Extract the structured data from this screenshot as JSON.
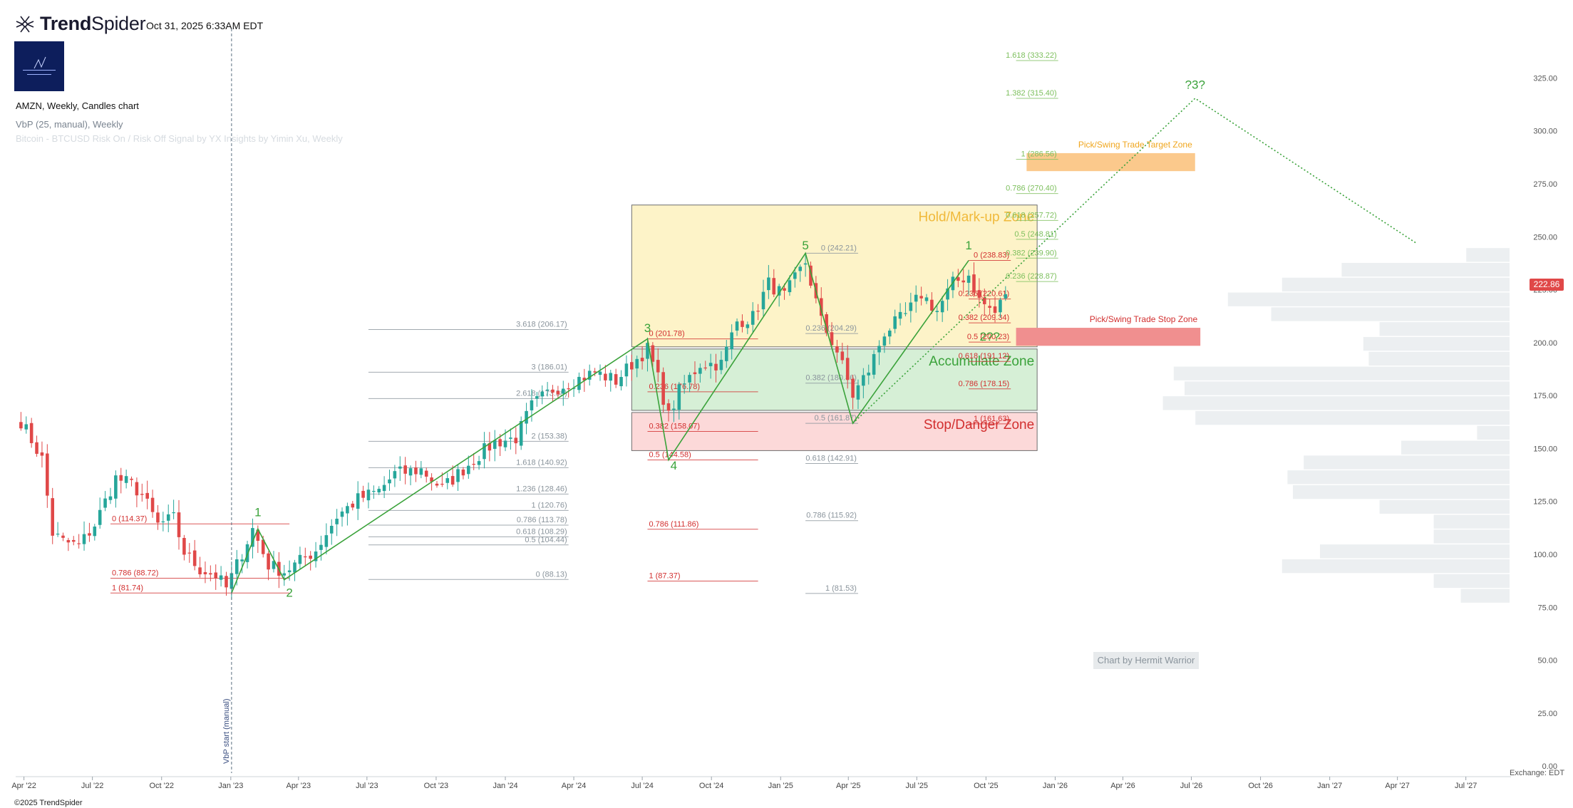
{
  "header": {
    "brand_bold": "Trend",
    "brand_light": "Spider",
    "timestamp": "Oct 31, 2025 6:33AM EDT",
    "chart_title": "AMZN, Weekly, Candles chart",
    "indicator_1": "VbP (25, manual), Weekly",
    "indicator_2": "Bitcoin - BTCUSD Risk On / Risk Off Signal by YX Insights by Yimin Xu, Weekly"
  },
  "footer": {
    "copyright": "©2025 TrendSpider",
    "exchange": "Exchange: EDT",
    "watermark": "Chart by Hermit Warrior"
  },
  "colors": {
    "up": "#26a69a",
    "down": "#e04848",
    "wave": "#3aa23a",
    "fib_gray": "#8a949c",
    "fib_red": "#d22f2f",
    "fib_green": "#7cbf5c",
    "zone_hold": "#fdf3c8",
    "zone_accumulate": "#d6efd6",
    "zone_stop": "#fcd9d9",
    "target_zone": "#fbc98c",
    "stop_zone_box": "#f08f8f",
    "vbp": "#eceff1"
  },
  "chart_data": {
    "type": "candlestick",
    "symbol": "AMZN",
    "interval": "Weekly",
    "x_range": [
      "2022-03-21",
      "2027-08-30"
    ],
    "y_range": [
      -5,
      345
    ],
    "x_ticks": [
      {
        "date": "2022-04-01",
        "label": "Apr '22"
      },
      {
        "date": "2022-07-01",
        "label": "Jul '22"
      },
      {
        "date": "2022-10-01",
        "label": "Oct '22"
      },
      {
        "date": "2023-01-01",
        "label": "Jan '23"
      },
      {
        "date": "2023-04-01",
        "label": "Apr '23"
      },
      {
        "date": "2023-07-01",
        "label": "Jul '23"
      },
      {
        "date": "2023-10-01",
        "label": "Oct '23"
      },
      {
        "date": "2024-01-01",
        "label": "Jan '24"
      },
      {
        "date": "2024-04-01",
        "label": "Apr '24"
      },
      {
        "date": "2024-07-01",
        "label": "Jul '24"
      },
      {
        "date": "2024-10-01",
        "label": "Oct '24"
      },
      {
        "date": "2025-01-01",
        "label": "Jan '25"
      },
      {
        "date": "2025-04-01",
        "label": "Apr '25"
      },
      {
        "date": "2025-07-01",
        "label": "Jul '25"
      },
      {
        "date": "2025-10-01",
        "label": "Oct '25"
      },
      {
        "date": "2026-01-01",
        "label": "Jan '26"
      },
      {
        "date": "2026-04-01",
        "label": "Apr '26"
      },
      {
        "date": "2026-07-01",
        "label": "Jul '26"
      },
      {
        "date": "2026-10-01",
        "label": "Oct '26"
      },
      {
        "date": "2027-01-01",
        "label": "Jan '27"
      },
      {
        "date": "2027-04-01",
        "label": "Apr '27"
      },
      {
        "date": "2027-07-01",
        "label": "Jul '27"
      }
    ],
    "y_ticks": [
      {
        "v": 325,
        "label": "325.00"
      },
      {
        "v": 300,
        "label": "300.00"
      },
      {
        "v": 275,
        "label": "275.00"
      },
      {
        "v": 250,
        "label": "250.00"
      },
      {
        "v": 225,
        "label": "225.00"
      },
      {
        "v": 200,
        "label": "200.00"
      },
      {
        "v": 175,
        "label": "175.00"
      },
      {
        "v": 150,
        "label": "150.00"
      },
      {
        "v": 125,
        "label": "125.00"
      },
      {
        "v": 100,
        "label": "100.00"
      },
      {
        "v": 75,
        "label": "75.00"
      },
      {
        "v": 50,
        "label": "50.00"
      },
      {
        "v": 25,
        "label": "25.00"
      },
      {
        "v": 0,
        "label": "0.00"
      }
    ],
    "last_price": "222.86",
    "close_path": [
      [
        "2022-03-28",
        163
      ],
      [
        "2022-04-25",
        145
      ],
      [
        "2022-05-09",
        110
      ],
      [
        "2022-05-23",
        106
      ],
      [
        "2022-06-13",
        104
      ],
      [
        "2022-07-04",
        114
      ],
      [
        "2022-08-01",
        136
      ],
      [
        "2022-08-22",
        133
      ],
      [
        "2022-09-05",
        128
      ],
      [
        "2022-09-26",
        114
      ],
      [
        "2022-10-17",
        117
      ],
      [
        "2022-10-31",
        101
      ],
      [
        "2022-11-21",
        93
      ],
      [
        "2022-12-12",
        90
      ],
      [
        "2022-12-26",
        84
      ],
      [
        "2023-01-09",
        95
      ],
      [
        "2023-01-30",
        112
      ],
      [
        "2023-02-20",
        95
      ],
      [
        "2023-03-13",
        92
      ],
      [
        "2023-03-27",
        95
      ],
      [
        "2023-04-24",
        102
      ],
      [
        "2023-05-22",
        118
      ],
      [
        "2023-06-19",
        126
      ],
      [
        "2023-07-17",
        130
      ],
      [
        "2023-08-07",
        138
      ],
      [
        "2023-09-11",
        140
      ],
      [
        "2023-10-09",
        131
      ],
      [
        "2023-10-30",
        138
      ],
      [
        "2023-11-27",
        147
      ],
      [
        "2023-12-18",
        153
      ],
      [
        "2024-01-15",
        155
      ],
      [
        "2024-02-05",
        170
      ],
      [
        "2024-03-04",
        178
      ],
      [
        "2024-04-01",
        182
      ],
      [
        "2024-04-29",
        186
      ],
      [
        "2024-05-27",
        182
      ],
      [
        "2024-06-17",
        190
      ],
      [
        "2024-07-08",
        197
      ],
      [
        "2024-07-22",
        183
      ],
      [
        "2024-08-05",
        165
      ],
      [
        "2024-08-19",
        177
      ],
      [
        "2024-09-16",
        190
      ],
      [
        "2024-10-14",
        190
      ],
      [
        "2024-11-04",
        210
      ],
      [
        "2024-11-25",
        212
      ],
      [
        "2024-12-16",
        228
      ],
      [
        "2025-01-06",
        222
      ],
      [
        "2025-02-03",
        238
      ],
      [
        "2025-02-24",
        210
      ],
      [
        "2025-03-17",
        196
      ],
      [
        "2025-04-07",
        175
      ],
      [
        "2025-04-28",
        187
      ],
      [
        "2025-05-19",
        205
      ],
      [
        "2025-06-16",
        213
      ],
      [
        "2025-07-07",
        223
      ],
      [
        "2025-07-28",
        215
      ],
      [
        "2025-08-18",
        228
      ],
      [
        "2025-09-08",
        232
      ],
      [
        "2025-09-22",
        220
      ],
      [
        "2025-10-13",
        214
      ],
      [
        "2025-10-27",
        222.86
      ]
    ],
    "drawings": {
      "vbp_start_label": "VbP start (manual)",
      "vbp_start_date": "2023-01-02",
      "wave_path": [
        [
          "2023-01-02",
          81.7
        ],
        [
          "2023-02-06",
          112
        ],
        [
          "2023-03-13",
          88
        ],
        [
          "2024-07-08",
          201.78
        ],
        [
          "2024-08-05",
          144.6
        ],
        [
          "2025-02-03",
          242.2
        ],
        [
          "2025-04-07",
          161.9
        ],
        [
          "2025-09-08",
          238.8
        ]
      ],
      "projection_path": [
        [
          "2025-04-07",
          161.9
        ],
        [
          "2026-07-06",
          315.4
        ],
        [
          "2027-04-26",
          247
        ]
      ],
      "wave_labels": [
        {
          "text": "1",
          "date": "2023-02-06",
          "v": 118
        },
        {
          "text": "2",
          "date": "2023-03-20",
          "v": 80
        },
        {
          "text": "3",
          "date": "2024-07-08",
          "v": 205
        },
        {
          "text": "4",
          "date": "2024-08-12",
          "v": 140
        },
        {
          "text": "5",
          "date": "2025-02-03",
          "v": 244
        },
        {
          "text": "1",
          "date": "2025-09-08",
          "v": 244
        },
        {
          "text": "2??",
          "date": "2025-10-06",
          "v": 201
        },
        {
          "text": "?3?",
          "date": "2026-07-06",
          "v": 320
        }
      ],
      "zones": [
        {
          "label": "Hold/Mark-up Zone",
          "x1": "2024-06-17",
          "x2": "2025-12-08",
          "y1": 198,
          "y2": 265,
          "color": "#fdf3c8",
          "text_color": "#f0b93a",
          "border": "#6e6e6e"
        },
        {
          "label": "Accumulate Zone",
          "x1": "2024-06-17",
          "x2": "2025-12-08",
          "y1": 168,
          "y2": 197,
          "color": "#d6efd6",
          "text_color": "#3aa23a",
          "border": "#6e6e6e"
        },
        {
          "label": "Stop/Danger Zone",
          "x1": "2024-06-17",
          "x2": "2025-12-08",
          "y1": 149,
          "y2": 167,
          "color": "#fcd9d9",
          "text_color": "#d22f2f",
          "border": "#6e6e6e"
        }
      ],
      "small_zones": [
        {
          "label": "Pick/Swing Trade Target Zone",
          "x1": "2025-11-24",
          "x2": "2026-07-06",
          "y1": 281,
          "y2": 289.5,
          "color": "#fbc98c",
          "text_color": "#f0a61e"
        },
        {
          "label": "Pick/Swing Trade Stop Zone",
          "x1": "2025-11-10",
          "x2": "2026-07-13",
          "y1": 198.5,
          "y2": 207,
          "color": "#f08f8f",
          "text_color": "#d22f2f"
        }
      ],
      "fib_sets": [
        {
          "color": "#8a949c",
          "x1": "2023-07-03",
          "x2": "2024-03-25",
          "label_date": "2024-03-25",
          "levels": [
            {
              "label": "3.618 (206.17)",
              "v": 206.17
            },
            {
              "label": "3 (186.01)",
              "v": 186.01
            },
            {
              "label": "2.618 (173.58)",
              "v": 173.58
            },
            {
              "label": "2 (153.38)",
              "v": 153.38
            },
            {
              "label": "1.618 (140.92)",
              "v": 140.92
            },
            {
              "label": "1.236 (128.46)",
              "v": 128.46
            },
            {
              "label": "1 (120.76)",
              "v": 120.76
            },
            {
              "label": "0.786 (113.78)",
              "v": 113.78
            },
            {
              "label": "0.618 (108.29)",
              "v": 108.29
            },
            {
              "label": "0.5 (104.44)",
              "v": 104.44
            },
            {
              "label": "0 (88.13)",
              "v": 88.13
            }
          ]
        },
        {
          "color": "#d22f2f",
          "x1": "2022-07-25",
          "x2": "2023-03-20",
          "label_date": "2022-07-25",
          "levels": [
            {
              "label": "0 (114.37)",
              "v": 114.37
            },
            {
              "label": "0.786 (88.72)",
              "v": 88.72
            },
            {
              "label": "1 (81.74)",
              "v": 81.74
            }
          ]
        },
        {
          "color": "#d22f2f",
          "x1": "2024-07-08",
          "x2": "2024-12-02",
          "label_date": "2024-07-08",
          "levels": [
            {
              "label": "0 (201.78)",
              "v": 201.78
            },
            {
              "label": "0.236 (176.78)",
              "v": 176.78
            },
            {
              "label": "0.382 (158.07)",
              "v": 158.07
            },
            {
              "label": "0.5 (144.58)",
              "v": 144.58
            },
            {
              "label": "0.786 (111.86)",
              "v": 111.86
            },
            {
              "label": "1 (87.37)",
              "v": 87.37
            }
          ]
        },
        {
          "color": "#8a949c",
          "x1": "2025-02-03",
          "x2": "2025-04-14",
          "label_date": "2025-04-14",
          "levels": [
            {
              "label": "0 (242.21)",
              "v": 242.21
            },
            {
              "label": "0.236 (204.29)",
              "v": 204.29
            },
            {
              "label": "0.382 (180.86)",
              "v": 180.86
            },
            {
              "label": "0.5 (161.87)",
              "v": 161.87
            },
            {
              "label": "0.618 (142.91)",
              "v": 142.91
            },
            {
              "label": "0.786 (115.92)",
              "v": 115.92
            },
            {
              "label": "1 (81.53)",
              "v": 81.53
            }
          ]
        },
        {
          "color": "#d22f2f",
          "x1": "2025-09-08",
          "x2": "2025-11-03",
          "label_date": "2025-11-03",
          "levels": [
            {
              "label": "0 (238.83)",
              "v": 238.83
            },
            {
              "label": "0.236 (220.61)",
              "v": 220.61
            },
            {
              "label": "0.382 (209.34)",
              "v": 209.34
            },
            {
              "label": "0.5 (200.23)",
              "v": 200.23
            },
            {
              "label": "0.618 (191.12)",
              "v": 191.12
            },
            {
              "label": "0.786 (178.15)",
              "v": 178.15
            },
            {
              "label": "1 (161.63)",
              "v": 161.63
            }
          ]
        },
        {
          "color": "#7cbf5c",
          "x1": "2025-11-10",
          "x2": "2026-01-05",
          "label_date": "2026-01-05",
          "levels": [
            {
              "label": "1.618 (333.22)",
              "v": 333.22
            },
            {
              "label": "1.382 (315.40)",
              "v": 315.4
            },
            {
              "label": "1 (286.56)",
              "v": 286.56
            },
            {
              "label": "0.786 (270.40)",
              "v": 270.4
            },
            {
              "label": "0.618 (257.72)",
              "v": 257.72
            },
            {
              "label": "0.5 (248.81)",
              "v": 248.81
            },
            {
              "label": "0.382 (239.90)",
              "v": 239.9
            },
            {
              "label": "0.236 (228.87)",
              "v": 228.87
            }
          ]
        }
      ],
      "vbp_bars": [
        {
          "lo": 238,
          "hi": 245,
          "vol": 0.08
        },
        {
          "lo": 231,
          "hi": 238,
          "vol": 0.31
        },
        {
          "lo": 224,
          "hi": 231,
          "vol": 0.42
        },
        {
          "lo": 217,
          "hi": 224,
          "vol": 0.52
        },
        {
          "lo": 210,
          "hi": 217,
          "vol": 0.44
        },
        {
          "lo": 203,
          "hi": 210,
          "vol": 0.24
        },
        {
          "lo": 196,
          "hi": 203,
          "vol": 0.27
        },
        {
          "lo": 189,
          "hi": 196,
          "vol": 0.26
        },
        {
          "lo": 182,
          "hi": 189,
          "vol": 0.62
        },
        {
          "lo": 175,
          "hi": 182,
          "vol": 0.6
        },
        {
          "lo": 168,
          "hi": 175,
          "vol": 0.64
        },
        {
          "lo": 161,
          "hi": 168,
          "vol": 0.58
        },
        {
          "lo": 154,
          "hi": 161,
          "vol": 0.06
        },
        {
          "lo": 147,
          "hi": 154,
          "vol": 0.2
        },
        {
          "lo": 140,
          "hi": 147,
          "vol": 0.38
        },
        {
          "lo": 133,
          "hi": 140,
          "vol": 0.41
        },
        {
          "lo": 126,
          "hi": 133,
          "vol": 0.4
        },
        {
          "lo": 119,
          "hi": 126,
          "vol": 0.24
        },
        {
          "lo": 112,
          "hi": 119,
          "vol": 0.14
        },
        {
          "lo": 105,
          "hi": 112,
          "vol": 0.14
        },
        {
          "lo": 98,
          "hi": 105,
          "vol": 0.35
        },
        {
          "lo": 91,
          "hi": 98,
          "vol": 0.42
        },
        {
          "lo": 84,
          "hi": 91,
          "vol": 0.14
        },
        {
          "lo": 77,
          "hi": 84,
          "vol": 0.09
        }
      ]
    }
  }
}
